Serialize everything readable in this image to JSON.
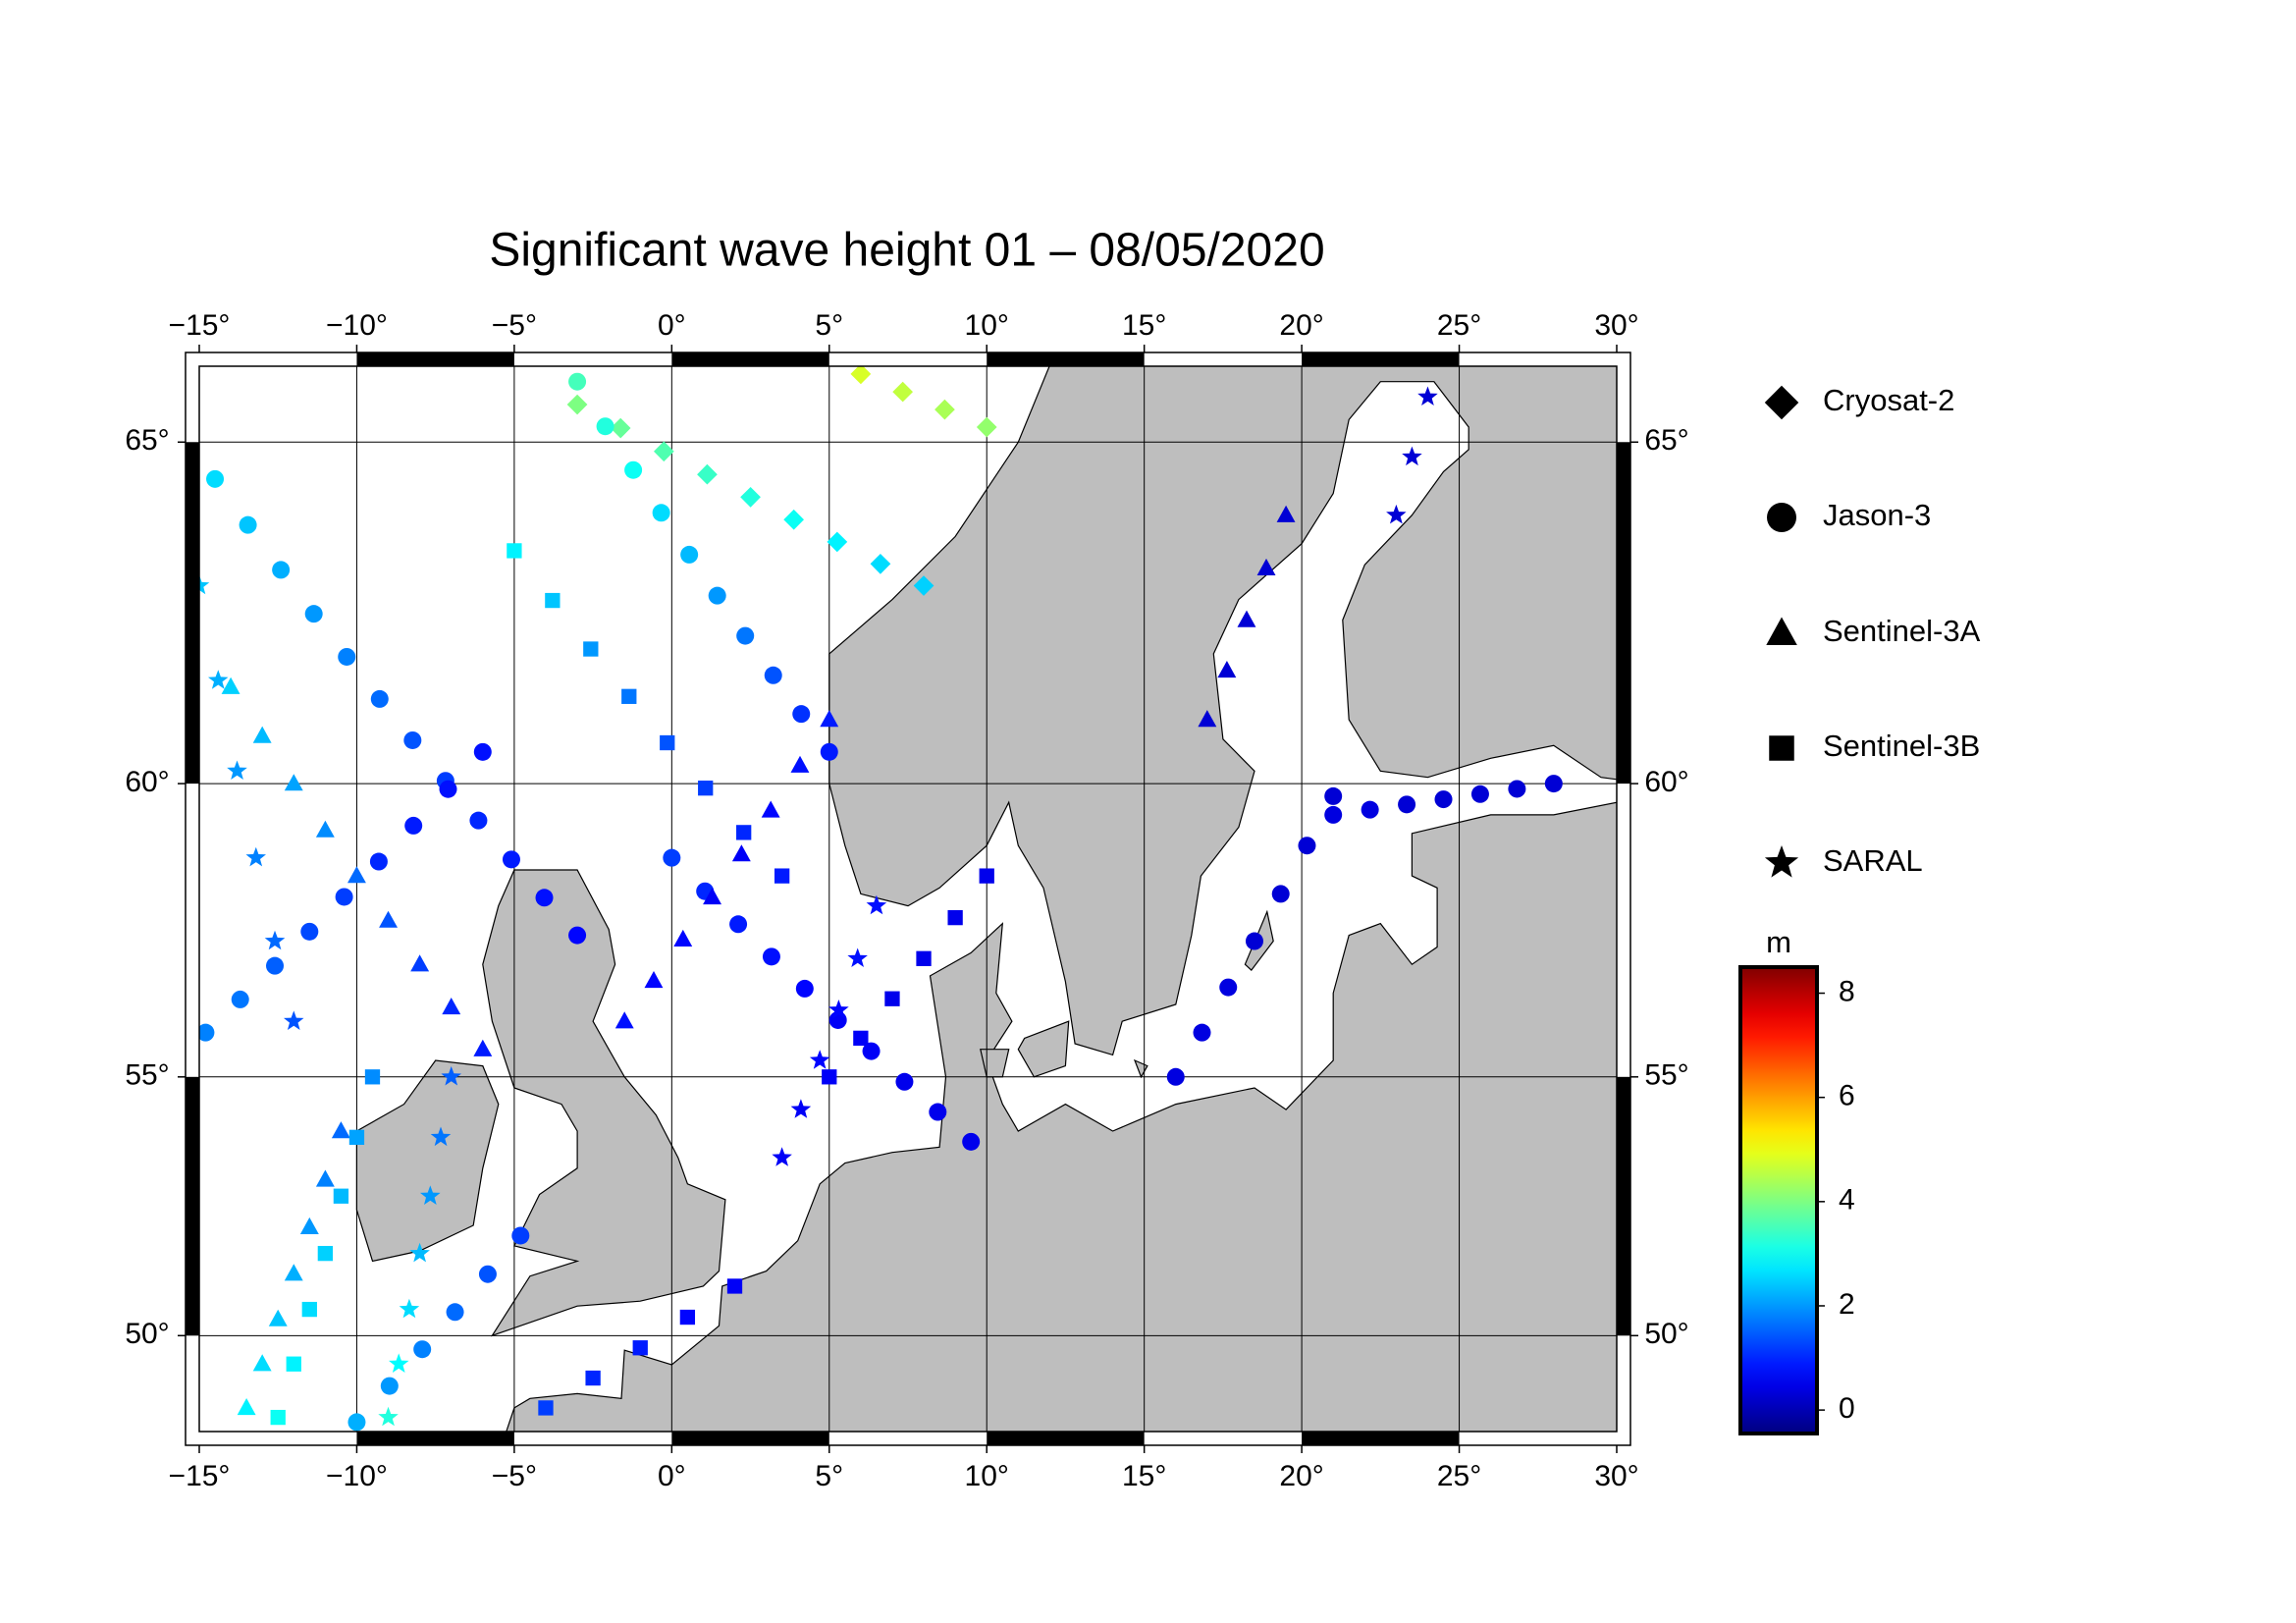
{
  "chart_data": {
    "type": "track-map",
    "projection": "mercator",
    "title": "Significant wave height 01 – 08/05/2020",
    "xlim": [
      -15,
      30
    ],
    "ylim": [
      48.0,
      66.0
    ],
    "xticks": [
      {
        "value": -15,
        "label": "−15°"
      },
      {
        "value": -10,
        "label": "−10°"
      },
      {
        "value": -5,
        "label": "−5°"
      },
      {
        "value": 0,
        "label": "0°"
      },
      {
        "value": 5,
        "label": "5°"
      },
      {
        "value": 10,
        "label": "10°"
      },
      {
        "value": 15,
        "label": "15°"
      },
      {
        "value": 20,
        "label": "20°"
      },
      {
        "value": 25,
        "label": "25°"
      },
      {
        "value": 30,
        "label": "30°"
      }
    ],
    "yticks": [
      {
        "value": 50,
        "label": "50°"
      },
      {
        "value": 55,
        "label": "55°"
      },
      {
        "value": 60,
        "label": "60°"
      },
      {
        "value": 65,
        "label": "65°"
      }
    ],
    "grid": true,
    "land_color": "#bebebe",
    "colormap": "jet",
    "colorbar_label": "m",
    "clim": [
      -0.45,
      8.5
    ],
    "colorbar_ticks": [
      0,
      2,
      4,
      6,
      8
    ],
    "series": [
      {
        "name": "Cryosat-2",
        "marker": "diamond",
        "tracks": [
          {
            "lon": [
              -3,
              8
            ],
            "lat": [
              65.5,
              63
            ],
            "swh": [
              4,
              3.8,
              3.6,
              3.4,
              3.2,
              3,
              2.8,
              2.6,
              2.5
            ]
          },
          {
            "lon": [
              6,
              10
            ],
            "lat": [
              65.9,
              65.2
            ],
            "swh": [
              4.8,
              4.6,
              4.4,
              4.2
            ]
          }
        ]
      },
      {
        "name": "Jason-3",
        "marker": "circle",
        "tracks": [
          {
            "lon": [
              -14.5,
              -3
            ],
            "lat": [
              64.5,
              57.5
            ],
            "swh": [
              2.6,
              2.4,
              2.2,
              2,
              1.8,
              1.6,
              1.4,
              1.2,
              1,
              0.9,
              0.8,
              0.7
            ]
          },
          {
            "lon": [
              -3,
              5
            ],
            "lat": [
              65.8,
              60.5
            ],
            "swh": [
              3.5,
              3.2,
              3,
              2.6,
              2.3,
              2,
              1.7,
              1.4,
              1.1,
              0.9
            ]
          },
          {
            "lon": [
              0,
              9.5
            ],
            "lat": [
              58.8,
              53.8
            ],
            "swh": [
              1.2,
              1,
              0.9,
              0.8,
              0.7,
              0.6,
              0.6,
              0.5,
              0.5,
              0.5
            ]
          },
          {
            "lon": [
              -14.8,
              -6
            ],
            "lat": [
              55.8,
              60.5
            ],
            "swh": [
              1.8,
              1.7,
              1.5,
              1.3,
              1.2,
              1,
              0.9,
              0.8,
              0.8
            ]
          },
          {
            "lon": [
              16,
              21
            ],
            "lat": [
              55,
              59.8
            ],
            "swh": [
              0.4,
              0.4,
              0.4,
              0.3,
              0.3,
              0.3,
              0.3
            ]
          },
          {
            "lon": [
              21,
              28
            ],
            "lat": [
              59.5,
              60
            ],
            "swh": [
              0.4,
              0.4,
              0.3,
              0.3,
              0.3,
              0.3,
              0.3
            ]
          },
          {
            "lon": [
              -10,
              -4.8
            ],
            "lat": [
              48.2,
              52
            ],
            "swh": [
              2.2,
              2,
              1.8,
              1.6,
              1.4,
              1.2
            ]
          }
        ]
      },
      {
        "name": "Sentinel-3A",
        "marker": "triangle",
        "tracks": [
          {
            "lon": [
              -14,
              -6
            ],
            "lat": [
              61.5,
              55.5
            ],
            "swh": [
              2.5,
              2.3,
              2.1,
              1.9,
              1.6,
              1.4,
              1.2,
              1,
              0.9
            ]
          },
          {
            "lon": [
              -1.5,
              5
            ],
            "lat": [
              56,
              61
            ],
            "swh": [
              0.8,
              0.7,
              0.7,
              0.6,
              0.6,
              0.7,
              0.8,
              0.9
            ]
          },
          {
            "lon": [
              -13.5,
              -10.5
            ],
            "lat": [
              48.5,
              54
            ],
            "swh": [
              2.8,
              2.6,
              2.4,
              2.2,
              2,
              1.8,
              1.6
            ]
          },
          {
            "lon": [
              17,
              19.5
            ],
            "lat": [
              61,
              64
            ],
            "swh": [
              0.3,
              0.3,
              0.3,
              0.3,
              0.3
            ]
          }
        ]
      },
      {
        "name": "Sentinel-3B",
        "marker": "square",
        "tracks": [
          {
            "lon": [
              -5,
              3.5
            ],
            "lat": [
              63.5,
              58.5
            ],
            "swh": [
              2.8,
              2.4,
              2,
              1.7,
              1.4,
              1.2,
              1,
              0.9
            ]
          },
          {
            "lon": [
              -12.5,
              -9.5
            ],
            "lat": [
              48.3,
              55
            ],
            "swh": [
              3,
              2.8,
              2.6,
              2.5,
              2.3,
              2.1,
              1.9
            ]
          },
          {
            "lon": [
              5,
              10
            ],
            "lat": [
              55,
              58.5
            ],
            "swh": [
              0.6,
              0.6,
              0.5,
              0.5,
              0.5,
              0.5
            ]
          },
          {
            "lon": [
              -4,
              2
            ],
            "lat": [
              48.5,
              51
            ],
            "swh": [
              1.2,
              1,
              0.9,
              0.7,
              0.6
            ]
          }
        ]
      },
      {
        "name": "SARAL",
        "marker": "star",
        "tracks": [
          {
            "lon": [
              -9,
              -7
            ],
            "lat": [
              48.3,
              55
            ],
            "swh": [
              3.2,
              2.9,
              2.6,
              2.3,
              2,
              1.7,
              1.5
            ]
          },
          {
            "lon": [
              3.5,
              6.5
            ],
            "lat": [
              53.5,
              58
            ],
            "swh": [
              0.6,
              0.6,
              0.7,
              0.7,
              0.8,
              0.8
            ]
          },
          {
            "lon": [
              23,
              24
            ],
            "lat": [
              64,
              65.6
            ],
            "swh": [
              0.3,
              0.3,
              0.3
            ]
          },
          {
            "lon": [
              -15,
              -12
            ],
            "lat": [
              63,
              56
            ],
            "swh": [
              2.4,
              2.2,
              2,
              1.8,
              1.6,
              1.4
            ]
          }
        ]
      }
    ]
  }
}
